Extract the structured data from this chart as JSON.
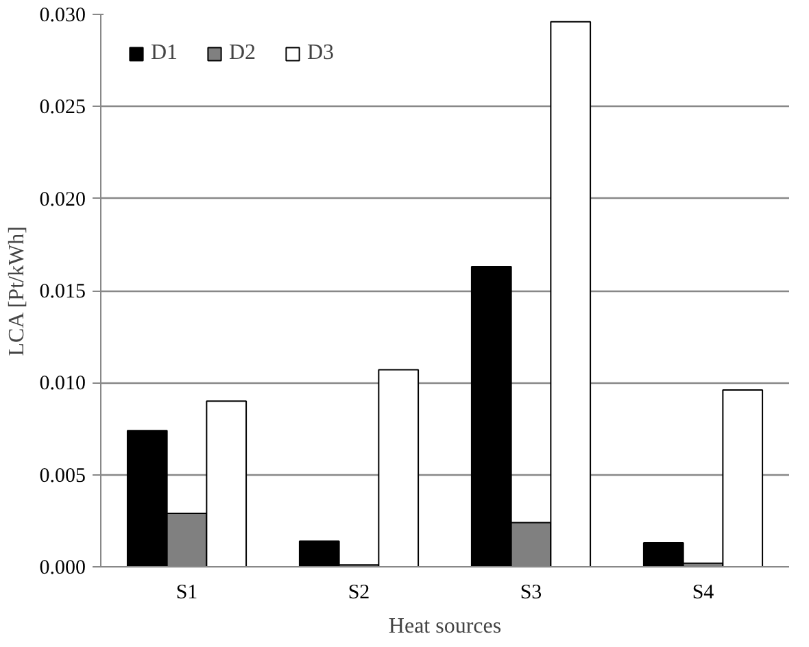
{
  "chart_data": {
    "type": "bar",
    "xlabel": "Heat sources",
    "ylabel": "LCA [Pt/kWh]",
    "categories": [
      "S1",
      "S2",
      "S3",
      "S4"
    ],
    "series": [
      {
        "name": "D1",
        "color": "#000000",
        "values": [
          0.0074,
          0.0014,
          0.0163,
          0.0013
        ]
      },
      {
        "name": "D2",
        "color": "#808080",
        "values": [
          0.0029,
          0.0001,
          0.0024,
          0.0002
        ]
      },
      {
        "name": "D3",
        "color": "#ffffff",
        "values": [
          0.009,
          0.0107,
          0.0296,
          0.0096
        ]
      }
    ],
    "ylim": [
      0,
      0.03
    ],
    "yticks": [
      {
        "value": 0,
        "label": "0.000"
      },
      {
        "value": 0.005,
        "label": "0.005"
      },
      {
        "value": 0.01,
        "label": "0.010"
      },
      {
        "value": 0.015,
        "label": "0.015"
      },
      {
        "value": 0.02,
        "label": "0.020"
      },
      {
        "value": 0.025,
        "label": "0.025"
      },
      {
        "value": 0.03,
        "label": "0.030"
      }
    ],
    "grid": "y",
    "legend": "top left"
  }
}
